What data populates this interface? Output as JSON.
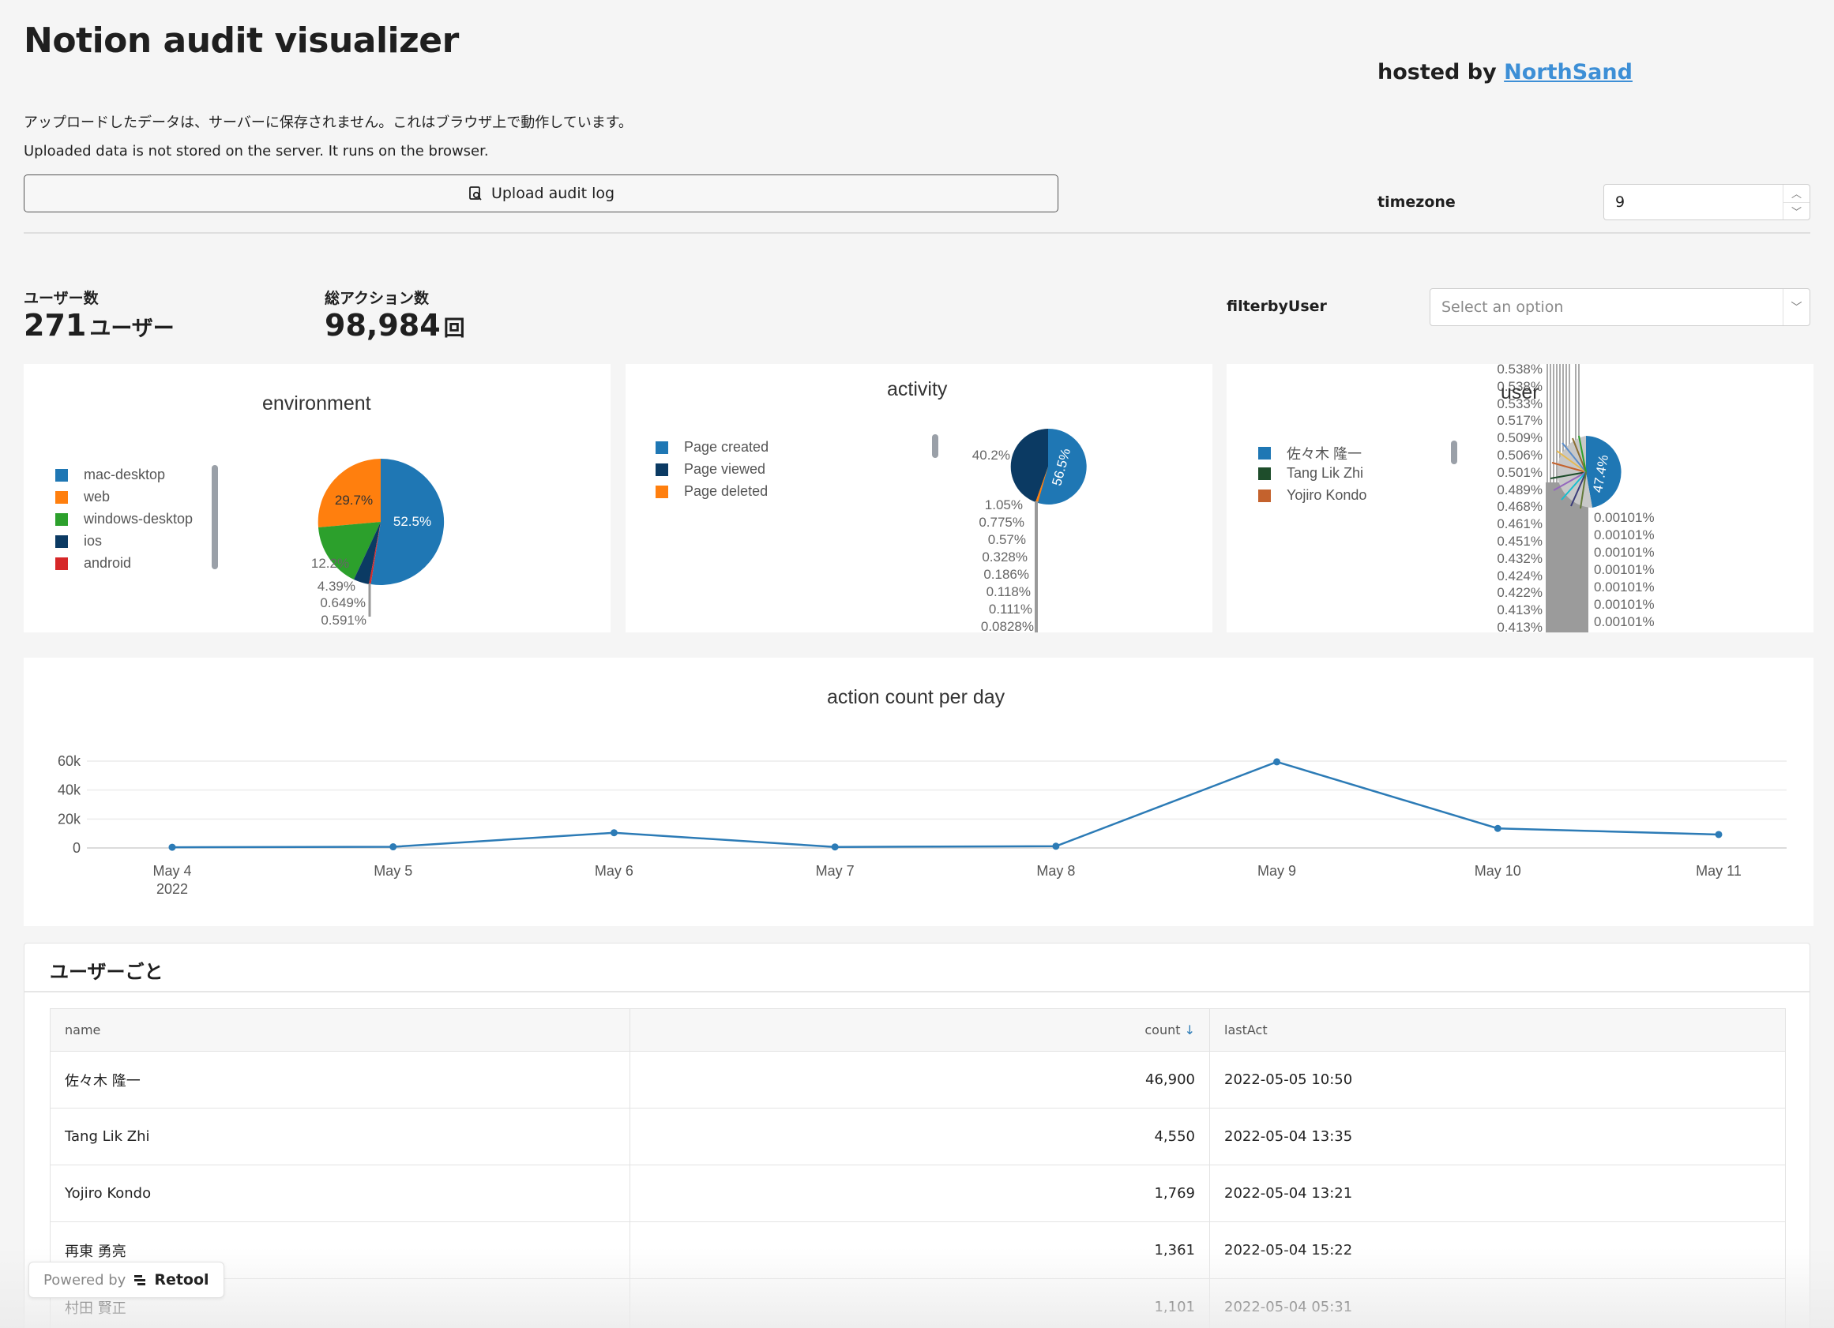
{
  "header": {
    "title": "Notion audit visualizer",
    "hosted_prefix": "hosted by",
    "hosted_link": "NorthSand",
    "notice_ja": "アップロードしたデータは、サーバーに保存されません。これはブラウザ上で動作しています。",
    "notice_en": "Uploaded data is not stored on the server. It runs on the browser.",
    "upload_label": "Upload audit log",
    "timezone_label": "timezone",
    "timezone_value": "9"
  },
  "stats": {
    "users_label": "ユーザー数",
    "users_value": "271",
    "users_unit": "ユーザー",
    "actions_label": "総アクション数",
    "actions_value": "98,984",
    "actions_unit": "回"
  },
  "filter": {
    "label": "filterbyUser",
    "placeholder": "Select an option"
  },
  "charts": {
    "environment": {
      "title": "environment",
      "legend": [
        {
          "name": "mac-desktop",
          "color": "#1f77b4"
        },
        {
          "name": "web",
          "color": "#ff7f0e"
        },
        {
          "name": "windows-desktop",
          "color": "#2ca02c"
        },
        {
          "name": "ios",
          "color": "#0b3a63"
        },
        {
          "name": "android",
          "color": "#d62728"
        }
      ],
      "slice_labels": [
        "52.5%",
        "29.7%"
      ],
      "outside_labels": [
        "12.2%",
        "4.39%",
        "0.649%",
        "0.591%"
      ]
    },
    "activity": {
      "title": "activity",
      "legend": [
        {
          "name": "Page created",
          "color": "#1f77b4"
        },
        {
          "name": "Page viewed",
          "color": "#0b3a63"
        },
        {
          "name": "Page deleted",
          "color": "#ff7f0e"
        }
      ],
      "slice_labels": [
        "56.5%",
        "40.2%"
      ],
      "outside_labels": [
        "1.05%",
        "0.775%",
        "0.57%",
        "0.328%",
        "0.186%",
        "0.118%",
        "0.111%",
        "0.0828%"
      ]
    },
    "user": {
      "title": "user",
      "legend": [
        {
          "name": "佐々木 隆一",
          "color": "#1f77b4"
        },
        {
          "name": "Tang Lik Zhi",
          "color": "#1e4d2b"
        },
        {
          "name": "Yojiro Kondo",
          "color": "#c4622d"
        }
      ],
      "slice_labels": [
        "47.4%"
      ],
      "left_labels": [
        "0.538%",
        "0.538%",
        "0.533%",
        "0.517%",
        "0.509%",
        "0.506%",
        "0.501%",
        "0.489%",
        "0.468%",
        "0.461%",
        "0.451%",
        "0.432%",
        "0.424%",
        "0.422%",
        "0.413%",
        "0.413%"
      ],
      "right_labels": [
        "0.00101%",
        "0.00101%",
        "0.00101%",
        "0.00101%",
        "0.00101%",
        "0.00101%",
        "0.00101%"
      ]
    }
  },
  "chart_data": {
    "type": "line",
    "title": "action count per day",
    "x": [
      "May 4",
      "May 5",
      "May 6",
      "May 7",
      "May 8",
      "May 9",
      "May 10",
      "May 11"
    ],
    "x_year_label": "2022",
    "series": [
      {
        "values": [
          500,
          800,
          10500,
          700,
          1200,
          59500,
          13500,
          9300
        ]
      }
    ],
    "ylim": [
      0,
      60000
    ],
    "yticks": [
      "0",
      "20k",
      "40k",
      "60k"
    ],
    "ytick_values": [
      0,
      20000,
      40000,
      60000
    ],
    "color": "#2c7bb6",
    "grid": true
  },
  "table": {
    "title": "ユーザーごと",
    "columns": [
      "name",
      "count",
      "lastAct"
    ],
    "sort_indicator": "↓",
    "rows": [
      {
        "name": "佐々木 隆一",
        "count": "46,900",
        "lastAct": "2022-05-05 10:50"
      },
      {
        "name": "Tang Lik Zhi",
        "count": "4,550",
        "lastAct": "2022-05-04 13:35"
      },
      {
        "name": "Yojiro Kondo",
        "count": "1,769",
        "lastAct": "2022-05-04 13:21"
      },
      {
        "name": "再東 勇亮",
        "count": "1,361",
        "lastAct": "2022-05-04 15:22"
      },
      {
        "name": "村田 賢正",
        "count": "1,101",
        "lastAct": "2022-05-04 05:31"
      }
    ]
  },
  "footer": {
    "powered_prefix": "Powered by",
    "powered_brand": "Retool"
  }
}
